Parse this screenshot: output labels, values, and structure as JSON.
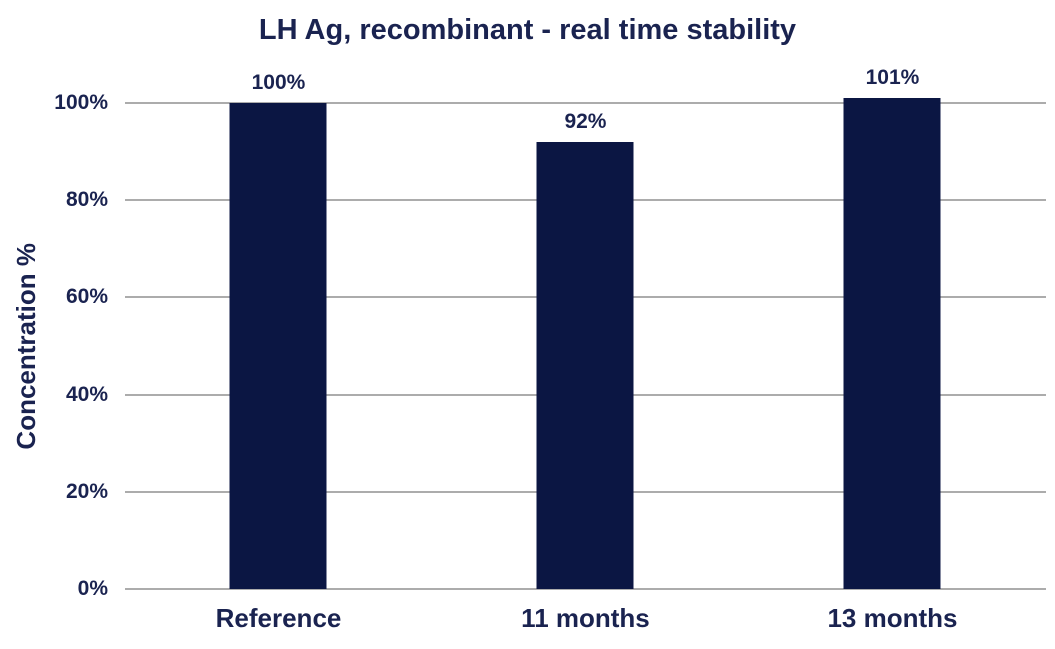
{
  "chart_data": {
    "type": "bar",
    "title": "LH Ag, recombinant - real time stability",
    "xlabel": "",
    "ylabel": "Concentration %",
    "categories": [
      "Reference",
      "11 months",
      "13 months"
    ],
    "values": [
      100,
      92,
      101
    ],
    "value_labels": [
      "100%",
      "92%",
      "101%"
    ],
    "ylim": [
      0,
      100
    ],
    "yticks": [
      0,
      20,
      40,
      60,
      80,
      100
    ],
    "ytick_labels": [
      "0%",
      "20%",
      "40%",
      "60%",
      "80%",
      "100%"
    ],
    "grid": true,
    "legend": false,
    "colors": {
      "bar": "#0b1643",
      "text": "#1a2350",
      "grid": "#acacac",
      "background": "#ffffff"
    }
  }
}
